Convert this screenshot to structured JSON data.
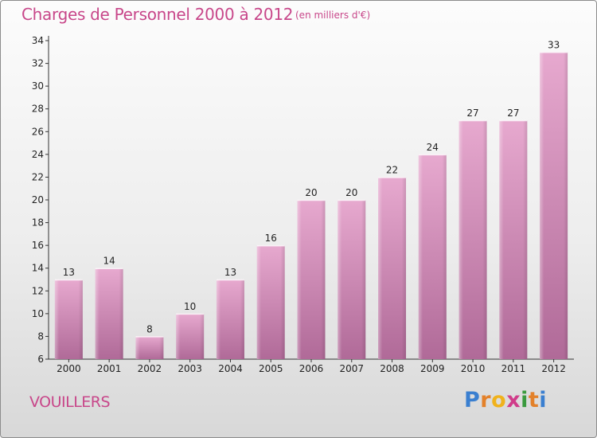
{
  "header": {
    "title": "Charges de Personnel 2000 à 2012",
    "subtitle": "(en milliers d'€)"
  },
  "footer": {
    "commune": "VOUILLERS",
    "logo_text": "Proxiti"
  },
  "colors": {
    "accent": "#c8478a",
    "bar_top": "#e7a9cf",
    "bar_bottom": "#b06a98"
  },
  "chart_data": {
    "type": "bar",
    "categories": [
      "2000",
      "2001",
      "2002",
      "2003",
      "2004",
      "2005",
      "2006",
      "2007",
      "2008",
      "2009",
      "2010",
      "2011",
      "2012"
    ],
    "values": [
      13,
      14,
      8,
      10,
      13,
      16,
      20,
      20,
      22,
      24,
      27,
      27,
      33
    ],
    "title": "Charges de Personnel 2000 à 2012",
    "subtitle": "(en milliers d'€)",
    "xlabel": "",
    "ylabel": "",
    "ylim": [
      6,
      34
    ],
    "yticks": [
      6,
      8,
      10,
      12,
      14,
      16,
      18,
      20,
      22,
      24,
      26,
      28,
      30,
      32,
      34
    ],
    "grid": false,
    "data_labels": true
  }
}
